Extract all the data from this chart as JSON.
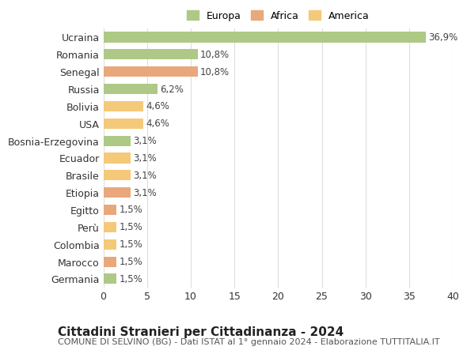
{
  "categories": [
    "Germania",
    "Marocco",
    "Colombia",
    "Perù",
    "Egitto",
    "Etiopia",
    "Brasile",
    "Ecuador",
    "Bosnia-Erzegovina",
    "USA",
    "Bolivia",
    "Russia",
    "Senegal",
    "Romania",
    "Ucraina"
  ],
  "values": [
    1.5,
    1.5,
    1.5,
    1.5,
    1.5,
    3.1,
    3.1,
    3.1,
    3.1,
    4.6,
    4.6,
    6.2,
    10.8,
    10.8,
    36.9
  ],
  "bar_colors": [
    "#aec986",
    "#e8a87c",
    "#f5c97a",
    "#f5c97a",
    "#e8a87c",
    "#e8a87c",
    "#f5c97a",
    "#f5c97a",
    "#aec986",
    "#f5c97a",
    "#f5c97a",
    "#aec986",
    "#e8a87c",
    "#aec986",
    "#aec986"
  ],
  "labels": [
    "1,5%",
    "1,5%",
    "1,5%",
    "1,5%",
    "1,5%",
    "3,1%",
    "3,1%",
    "3,1%",
    "3,1%",
    "4,6%",
    "4,6%",
    "6,2%",
    "10,8%",
    "10,8%",
    "36,9%"
  ],
  "legend": [
    {
      "label": "Europa",
      "color": "#aec986"
    },
    {
      "label": "Africa",
      "color": "#e8a87c"
    },
    {
      "label": "America",
      "color": "#f5c97a"
    }
  ],
  "title": "Cittadini Stranieri per Cittadinanza - 2024",
  "subtitle": "COMUNE DI SELVINO (BG) - Dati ISTAT al 1° gennaio 2024 - Elaborazione TUTTITALIA.IT",
  "xlabel": "",
  "xlim": [
    0,
    40
  ],
  "xticks": [
    0,
    5,
    10,
    15,
    20,
    25,
    30,
    35,
    40
  ],
  "background_color": "#ffffff",
  "grid_color": "#dddddd",
  "bar_height": 0.6,
  "title_fontsize": 11,
  "subtitle_fontsize": 8,
  "tick_fontsize": 9,
  "label_fontsize": 8.5,
  "legend_fontsize": 9
}
